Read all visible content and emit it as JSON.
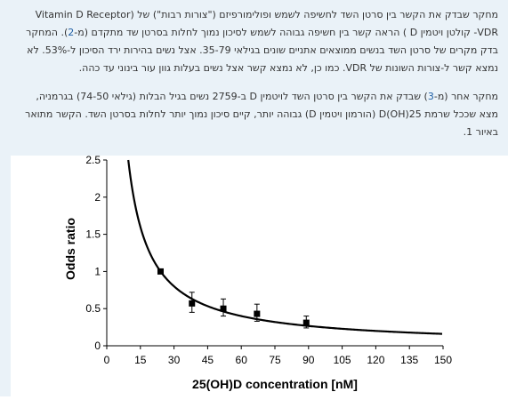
{
  "article": {
    "p1": {
      "l1": "מחקר שבדק את הקשר בין סרטן השד לחשיפה לשמש ופולימורפיזם (\"צורות רבות\") של (Vitamin D Receptor",
      "l2a": "VDR- קולטן ויטמין D ) הראה קשר בין חשיפה גבוהה לשמש לסיכון נמוך לחלות בסרטן שד מתקדם (מ-",
      "l2ref": "2",
      "l2b": "). המחקר",
      "l3": "בדק מקרים של סרטן השד בנשים ממוצאים אתניים שונים בגילאי 35-79. אצל נשים בהירות ירד הסיכון ל-53%. לא",
      "l4": "נמצא קשר ל-צורות השונות של VDR. כמו כן, לא נמצא קשר אצל נשים בעלות גוון עור בינוני עד כהה."
    },
    "p2": {
      "l1a": "מחקר אחר (מ-",
      "l1ref": "3",
      "l1b": ") שבדק את הקשר בין סרטן השד לויטמין D ב-2759 נשים בגיל הבלות (גילאי 74-50) בגרמניה,",
      "l2": "מצא שככל שרמת D(OH)25 (הורמון ויטמין D) גבוהה יותר, קיים סיכון נמוך יותר לחלות בסרטן השד. הקשר מתואר",
      "l3": "באיור 1."
    }
  },
  "chart_data": {
    "type": "scatter",
    "xlabel": "25(OH)D concentration [nM]",
    "ylabel": "Odds ratio",
    "xlim": [
      0,
      150
    ],
    "ylim": [
      0,
      2.5
    ],
    "x_ticks": [
      "0",
      "15",
      "30",
      "45",
      "60",
      "75",
      "90",
      "105",
      "120",
      "135",
      "150"
    ],
    "y_ticks": [
      "0",
      "0.5",
      "1",
      "1.5",
      "2",
      "2.5"
    ],
    "points": [
      {
        "x": 24,
        "y": 1.0,
        "err_low": 0.98,
        "err_high": 1.02
      },
      {
        "x": 38,
        "y": 0.57,
        "err_low": 0.45,
        "err_high": 0.72
      },
      {
        "x": 52,
        "y": 0.5,
        "err_low": 0.4,
        "err_high": 0.63
      },
      {
        "x": 67,
        "y": 0.43,
        "err_low": 0.33,
        "err_high": 0.56
      },
      {
        "x": 89,
        "y": 0.31,
        "err_low": 0.24,
        "err_high": 0.4
      }
    ],
    "fitted_curve": {
      "formula": "OR = 24 / x",
      "x_start": 9.6,
      "x_end": 150
    },
    "grid": false,
    "legend": "none",
    "colors": {
      "marks": "#000000",
      "axis": "#000000"
    }
  }
}
